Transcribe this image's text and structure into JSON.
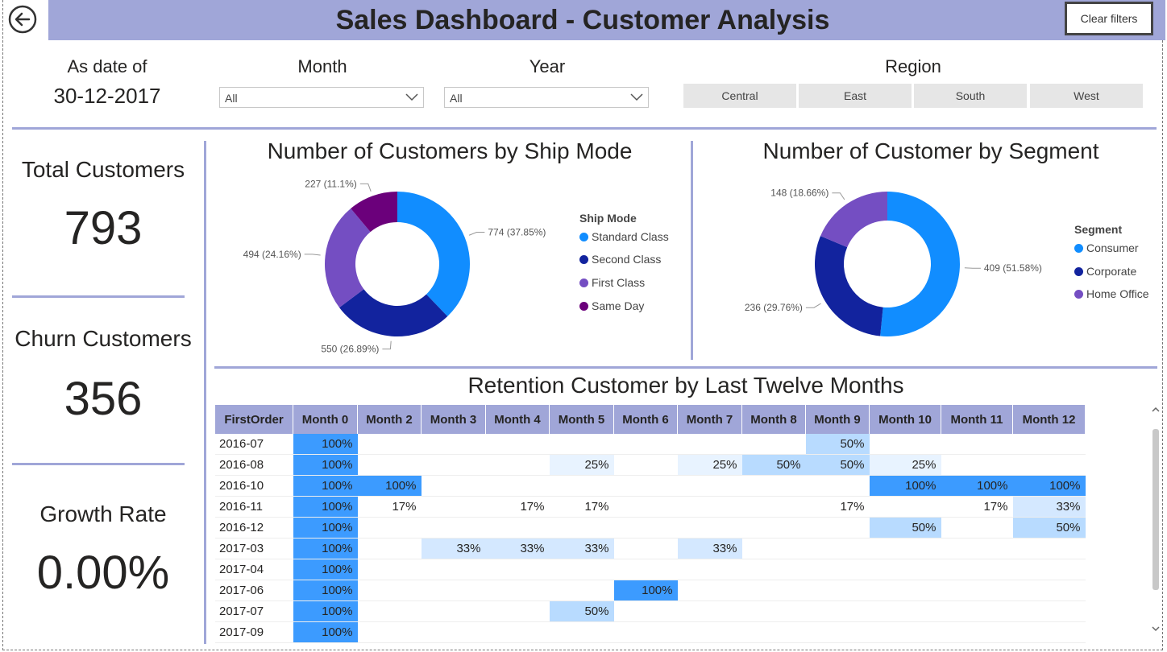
{
  "header": {
    "title": "Sales Dashboard - Customer Analysis",
    "clear_filters": "Clear filters"
  },
  "filters": {
    "as_date_label": "As date of",
    "as_date_value": "30-12-2017",
    "month_label": "Month",
    "month_value": "All",
    "year_label": "Year",
    "year_value": "All",
    "region_label": "Region",
    "regions": [
      "Central",
      "East",
      "South",
      "West"
    ]
  },
  "kpis": {
    "total_label": "Total Customers",
    "total_value": "793",
    "churn_label": "Churn Customers",
    "churn_value": "356",
    "growth_label": "Growth Rate",
    "growth_value": "0.00%"
  },
  "colors": {
    "accent": "#A0A6D8",
    "c1": "#118DFF",
    "c2": "#12239E",
    "c3": "#744EC2",
    "c4": "#6B007B"
  },
  "chart_data": [
    {
      "type": "pie",
      "title": "Number of Customers by Ship Mode",
      "legend_title": "Ship Mode",
      "categories": [
        "Standard Class",
        "Second Class",
        "First Class",
        "Same Day"
      ],
      "values": [
        774,
        550,
        494,
        227
      ],
      "labels": [
        "774 (37.85%)",
        "550 (26.89%)",
        "494 (24.16%)",
        "227 (11.1%)"
      ],
      "colors": [
        "#118DFF",
        "#12239E",
        "#744EC2",
        "#6B007B"
      ]
    },
    {
      "type": "pie",
      "title": "Number of Customer by Segment",
      "legend_title": "Segment",
      "categories": [
        "Consumer",
        "Corporate",
        "Home Office"
      ],
      "values": [
        409,
        236,
        148
      ],
      "labels": [
        "409 (51.58%)",
        "236 (29.76%)",
        "148 (18.66%)"
      ],
      "colors": [
        "#118DFF",
        "#12239E",
        "#744EC2"
      ]
    },
    {
      "type": "table",
      "title": "Retention Customer by Last Twelve Months",
      "columns": [
        "FirstOrder",
        "Month 0",
        "Month 2",
        "Month 3",
        "Month 4",
        "Month 5",
        "Month 6",
        "Month 7",
        "Month 8",
        "Month 9",
        "Month 10",
        "Month 11",
        "Month 12"
      ],
      "rows": [
        [
          "2016-07",
          "100%",
          "",
          "",
          "",
          "",
          "",
          "",
          "",
          "50%",
          "",
          "",
          ""
        ],
        [
          "2016-08",
          "100%",
          "",
          "",
          "",
          "25%",
          "",
          "25%",
          "50%",
          "50%",
          "25%",
          "",
          ""
        ],
        [
          "2016-10",
          "100%",
          "100%",
          "",
          "",
          "",
          "",
          "",
          "",
          "",
          "100%",
          "100%",
          "100%"
        ],
        [
          "2016-11",
          "100%",
          "17%",
          "",
          "17%",
          "17%",
          "",
          "",
          "",
          "17%",
          "",
          "17%",
          "33%"
        ],
        [
          "2016-12",
          "100%",
          "",
          "",
          "",
          "",
          "",
          "",
          "",
          "",
          "50%",
          "",
          "50%"
        ],
        [
          "2017-03",
          "100%",
          "",
          "33%",
          "33%",
          "33%",
          "",
          "33%",
          "",
          "",
          "",
          "",
          ""
        ],
        [
          "2017-04",
          "100%",
          "",
          "",
          "",
          "",
          "",
          "",
          "",
          "",
          "",
          "",
          ""
        ],
        [
          "2017-06",
          "100%",
          "",
          "",
          "",
          "",
          "100%",
          "",
          "",
          "",
          "",
          "",
          ""
        ],
        [
          "2017-07",
          "100%",
          "",
          "",
          "",
          "50%",
          "",
          "",
          "",
          "",
          "",
          "",
          ""
        ],
        [
          "2017-09",
          "100%",
          "",
          "",
          "",
          "",
          "",
          "",
          "",
          "",
          "",
          "",
          ""
        ]
      ]
    }
  ]
}
